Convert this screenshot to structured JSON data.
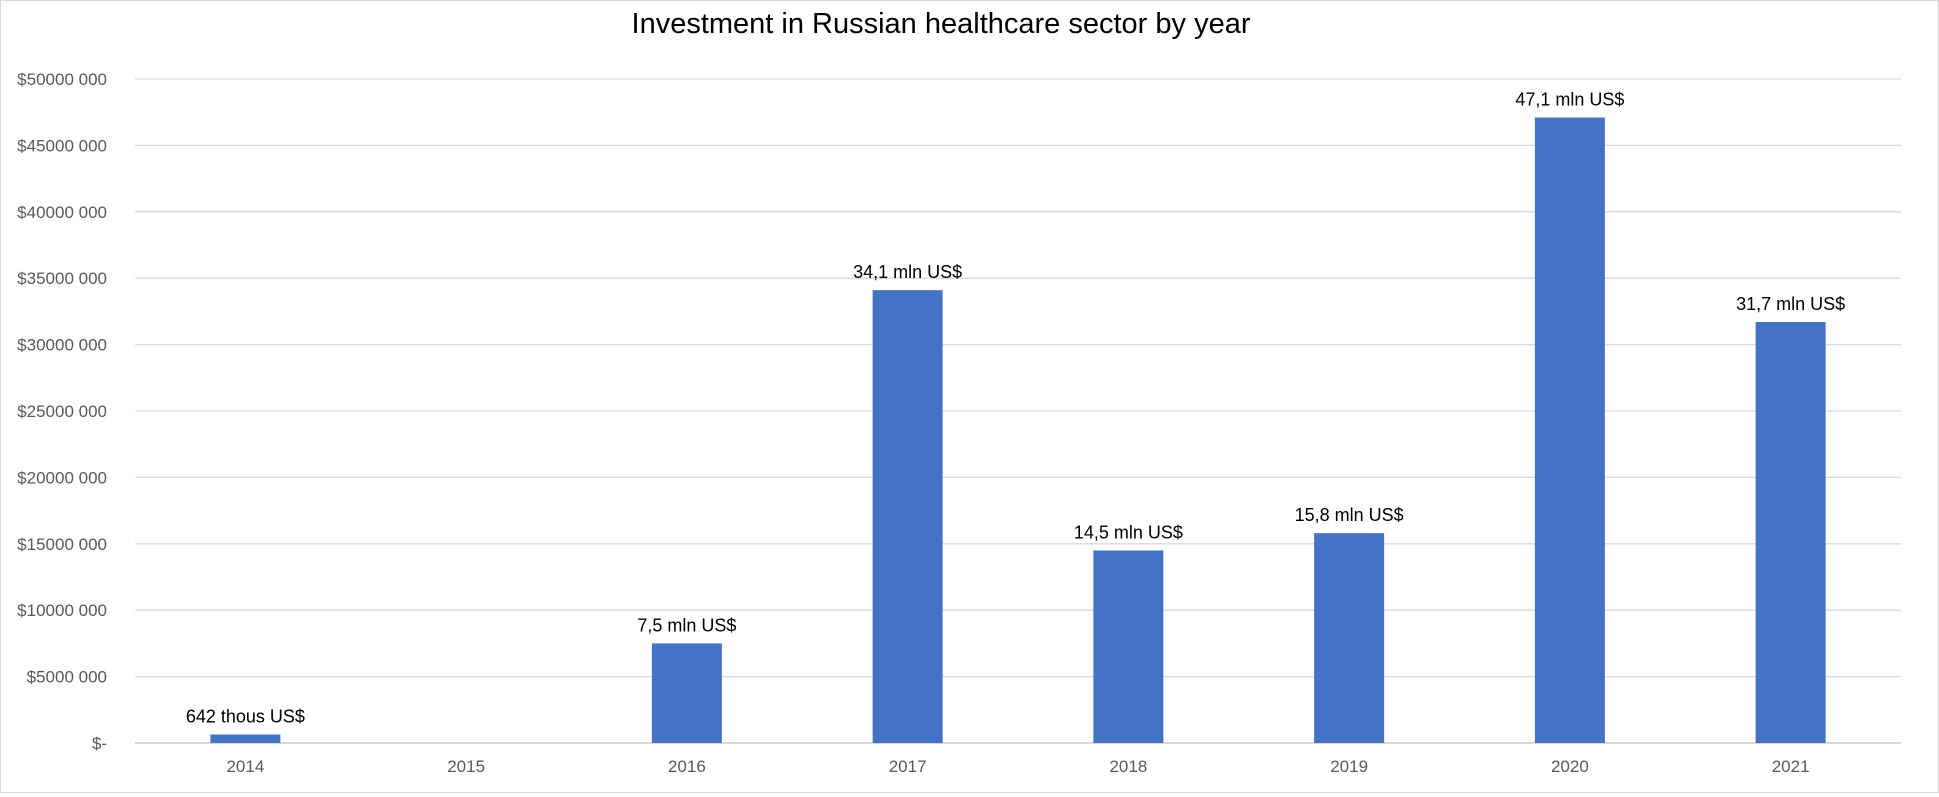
{
  "chart_data": {
    "type": "bar",
    "title": "Investment in Russian healthcare sector by year",
    "xlabel": "",
    "ylabel": "",
    "categories": [
      "2014",
      "2015",
      "2016",
      "2017",
      "2018",
      "2019",
      "2020",
      "2021"
    ],
    "values": [
      642000,
      0,
      7500000,
      34100000,
      14500000,
      15800000,
      47100000,
      31700000
    ],
    "data_labels": [
      "642 thous US$",
      "",
      "7,5 mln US$",
      "34,1 mln US$",
      "14,5 mln US$",
      "15,8 mln US$",
      "47,1 mln US$",
      "31,7 mln US$"
    ],
    "ylim": [
      0,
      50000000
    ],
    "y_ticks": [
      0,
      5000000,
      10000000,
      15000000,
      20000000,
      25000000,
      30000000,
      35000000,
      40000000,
      45000000,
      50000000
    ],
    "y_tick_labels": [
      "$-",
      "$5000 000",
      "$10000 000",
      "$15000 000",
      "$20000 000",
      "$25000 000",
      "$30000 000",
      "$35000 000",
      "$40000 000",
      "$45000 000",
      "$50000 000"
    ],
    "grid": true,
    "legend": "none",
    "colors": {
      "bar": "#4472C4",
      "grid": "#d9d9d9",
      "axis": "#bfbfbf",
      "tick_text": "#595959",
      "label_text": "#000000"
    }
  }
}
